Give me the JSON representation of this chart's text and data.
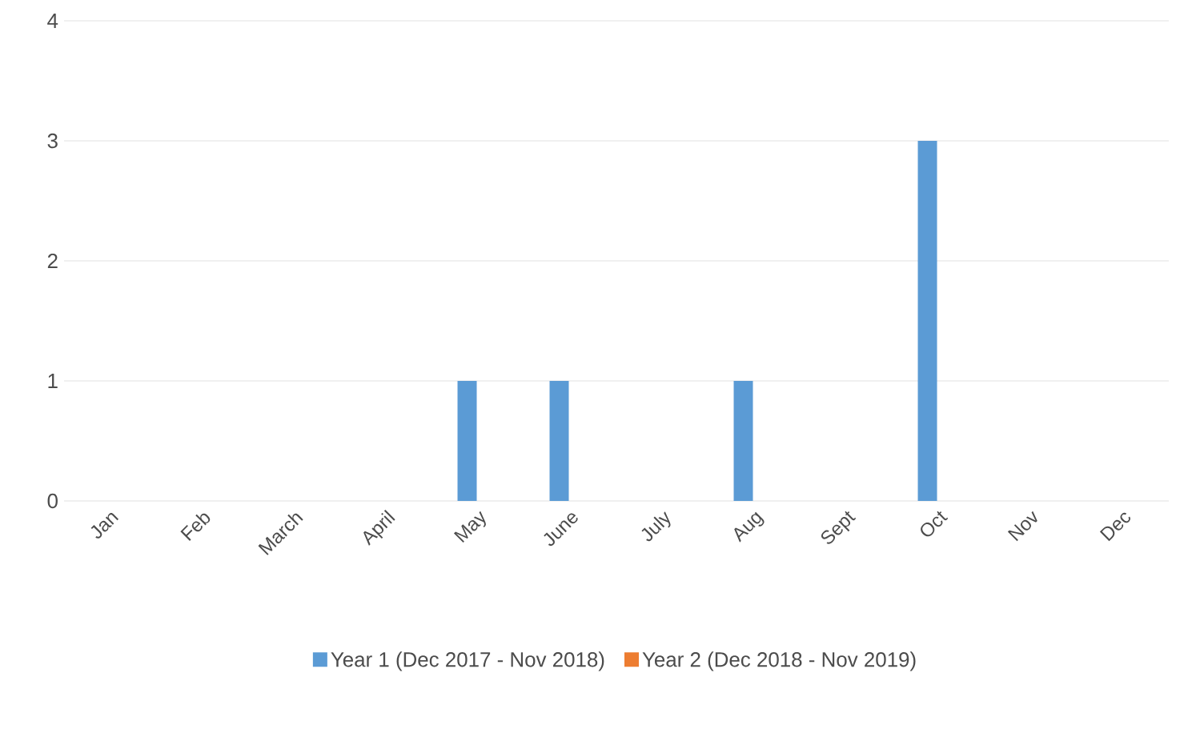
{
  "chart_data": {
    "type": "bar",
    "categories": [
      "Jan",
      "Feb",
      "March",
      "April",
      "May",
      "June",
      "July",
      "Aug",
      "Sept",
      "Oct",
      "Nov",
      "Dec"
    ],
    "series": [
      {
        "name": "Year 1 (Dec 2017 - Nov 2018)",
        "color": "#5b9bd5",
        "values": [
          0,
          0,
          0,
          0,
          1,
          1,
          0,
          1,
          0,
          3,
          0,
          0
        ]
      },
      {
        "name": "Year 2 (Dec 2018 - Nov 2019)",
        "color": "#ed7d31",
        "values": [
          0,
          0,
          0,
          0,
          0,
          0,
          0,
          0,
          0,
          0,
          0,
          0
        ]
      }
    ],
    "ylim": [
      0,
      4
    ],
    "yticks": [
      0,
      1,
      2,
      3,
      4
    ],
    "grid": "y",
    "legend": "bottom"
  }
}
